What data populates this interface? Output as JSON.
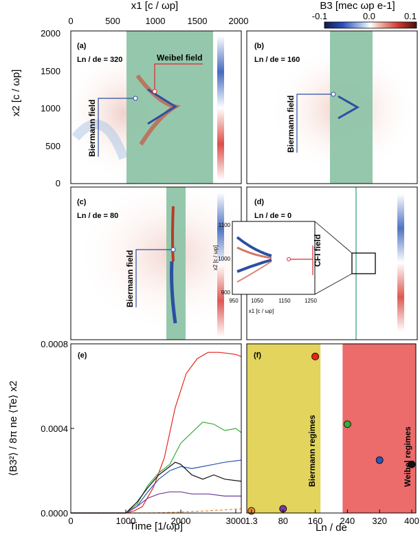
{
  "top_axis": {
    "label": "x1 [c / ωp]",
    "ticks": [
      "0",
      "500",
      "1000",
      "1500",
      "2000"
    ]
  },
  "colorbar": {
    "label": "B3 [mec ωp e-1]",
    "ticks": [
      "-0.1",
      "0.0",
      "0.1"
    ]
  },
  "left_axis": {
    "label": "x2 [c / ωp]",
    "ticks": [
      "0",
      "500",
      "1000",
      "1500",
      "2000"
    ]
  },
  "panels": [
    {
      "tag": "(a)",
      "param": "Ln / de = 320",
      "annotations": [
        "Weibel field",
        "Biermann field"
      ]
    },
    {
      "tag": "(b)",
      "param": "Ln / de = 160",
      "annotations": [
        "Biermann field"
      ]
    },
    {
      "tag": "(c)",
      "param": "Ln / de = 80",
      "annotations": [
        "Biermann field"
      ]
    },
    {
      "tag": "(d)",
      "param": "Ln / de = 0",
      "annotations": [
        "CFI field"
      ]
    }
  ],
  "inset": {
    "xlabel": "x1 [c / ωp]",
    "ylabel": "x2 [c / ωp]",
    "xticks": [
      "950",
      "1050",
      "1150",
      "1250"
    ],
    "yticks": [
      "900",
      "1000",
      "1100"
    ]
  },
  "chart_data": [
    {
      "type": "line",
      "tag": "(e)",
      "xlabel": "Time [1/ωp]",
      "ylabel": "⟨B3²⟩ / 8π ne ⟨Te⟩ x2",
      "xlim": [
        0,
        3100
      ],
      "ylim": [
        0,
        0.0008
      ],
      "xticks": [
        "0",
        "1000",
        "2000",
        "3000"
      ],
      "yticks": [
        "0.0000",
        "0.0004",
        "0.0008"
      ],
      "series": [
        {
          "color": "#e8241c",
          "points": [
            [
              0,
              0
            ],
            [
              1000,
              0
            ],
            [
              1150,
              1e-05
            ],
            [
              1300,
              3e-05
            ],
            [
              1500,
              0.00012
            ],
            [
              1700,
              0.00026
            ],
            [
              1900,
              0.0005
            ],
            [
              2100,
              0.00066
            ],
            [
              2300,
              0.00073
            ],
            [
              2500,
              0.00076
            ],
            [
              2700,
              0.00076
            ],
            [
              3000,
              0.00075
            ],
            [
              3100,
              0.00074
            ]
          ]
        },
        {
          "color": "#3aaa3a",
          "points": [
            [
              0,
              0
            ],
            [
              1000,
              0
            ],
            [
              1200,
              4e-05
            ],
            [
              1400,
              0.00013
            ],
            [
              1600,
              0.00019
            ],
            [
              1800,
              0.00023
            ],
            [
              2000,
              0.00033
            ],
            [
              2200,
              0.00038
            ],
            [
              2400,
              0.00043
            ],
            [
              2600,
              0.00042
            ],
            [
              2800,
              0.00039
            ],
            [
              3000,
              0.0004
            ],
            [
              3100,
              0.00038
            ]
          ]
        },
        {
          "color": "#2a55b5",
          "points": [
            [
              0,
              0
            ],
            [
              1000,
              0
            ],
            [
              1200,
              3e-05
            ],
            [
              1400,
              0.0001
            ],
            [
              1600,
              0.00016
            ],
            [
              1800,
              0.0002
            ],
            [
              2000,
              0.00022
            ],
            [
              2200,
              0.00021
            ],
            [
              2400,
              0.00022
            ],
            [
              2600,
              0.00023
            ],
            [
              2800,
              0.00024
            ],
            [
              3100,
              0.00025
            ]
          ]
        },
        {
          "color": "#111111",
          "points": [
            [
              0,
              0
            ],
            [
              1000,
              0
            ],
            [
              1200,
              5e-05
            ],
            [
              1400,
              0.00012
            ],
            [
              1600,
              0.00018
            ],
            [
              1800,
              0.00022
            ],
            [
              1900,
              0.00024
            ],
            [
              2000,
              0.00023
            ],
            [
              2200,
              0.00018
            ],
            [
              2400,
              0.00016
            ],
            [
              2600,
              0.00018
            ],
            [
              2800,
              0.00016
            ],
            [
              3100,
              0.00015
            ]
          ]
        },
        {
          "color": "#6a3a9a",
          "points": [
            [
              0,
              0
            ],
            [
              1000,
              0
            ],
            [
              1200,
              3e-05
            ],
            [
              1400,
              7e-05
            ],
            [
              1600,
              9e-05
            ],
            [
              1800,
              0.0001
            ],
            [
              2000,
              0.0001
            ],
            [
              2200,
              9e-05
            ],
            [
              2500,
              9e-05
            ],
            [
              2800,
              8e-05
            ],
            [
              3100,
              8e-05
            ]
          ]
        },
        {
          "color": "#f08a2a",
          "dashed": true,
          "points": [
            [
              0,
              0
            ],
            [
              1500,
              0
            ],
            [
              2000,
              5e-06
            ],
            [
              2500,
              1e-05
            ],
            [
              2800,
              1.5e-05
            ],
            [
              3100,
              2e-05
            ]
          ]
        }
      ]
    },
    {
      "type": "scatter",
      "tag": "(f)",
      "xlabel": "Ln / de",
      "xlim": [
        0,
        400
      ],
      "ylim": [
        0,
        0.0008
      ],
      "xticks": [
        "1.3",
        "80",
        "160",
        "240",
        "320",
        "400"
      ],
      "regions": [
        {
          "label": "Biermann regimes",
          "from": 0,
          "to": 173,
          "color": "#e2d45c"
        },
        {
          "label": "Weibel regimes",
          "from": 228,
          "to": 400,
          "color": "#ec6b6b"
        }
      ],
      "points": [
        {
          "x": 1.3,
          "y": 1e-05,
          "color": "#f08a2a"
        },
        {
          "x": 80,
          "y": 2e-05,
          "color": "#7a3a9a"
        },
        {
          "x": 160,
          "y": 0.00074,
          "color": "#e8241c"
        },
        {
          "x": 240,
          "y": 0.00042,
          "color": "#3aaa3a"
        },
        {
          "x": 320,
          "y": 0.00025,
          "color": "#2a55b5"
        },
        {
          "x": 400,
          "y": 0.00023,
          "color": "#111111"
        }
      ]
    }
  ]
}
